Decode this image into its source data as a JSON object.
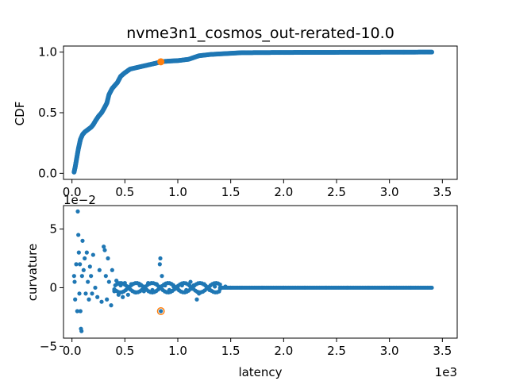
{
  "chart_data": [
    {
      "type": "scatter",
      "title": "nvme3n1_cosmos_out-rerated-10.0",
      "xlabel": "",
      "ylabel": "CDF",
      "xlim": [
        -80,
        3640
      ],
      "ylim": [
        -0.05,
        1.05
      ],
      "xticks": [
        0.0,
        0.5,
        1.0,
        1.5,
        2.0,
        2.5,
        3.0,
        3.5
      ],
      "xtick_labels": [
        "0.0",
        "0.5",
        "1.0",
        "1.5",
        "2.0",
        "2.5",
        "3.0",
        "3.5"
      ],
      "yticks": [
        0.0,
        0.5,
        1.0
      ],
      "ytick_labels": [
        "0.0",
        "0.5",
        "1.0"
      ],
      "x_scale_note": "",
      "series_color": "#1f77b4",
      "highlight_color": "#ff7f0e",
      "cdf_curve": [
        [
          20,
          0.01
        ],
        [
          30,
          0.05
        ],
        [
          40,
          0.1
        ],
        [
          50,
          0.15
        ],
        [
          60,
          0.2
        ],
        [
          70,
          0.24
        ],
        [
          80,
          0.28
        ],
        [
          100,
          0.32
        ],
        [
          120,
          0.34
        ],
        [
          150,
          0.36
        ],
        [
          180,
          0.38
        ],
        [
          200,
          0.4
        ],
        [
          220,
          0.43
        ],
        [
          250,
          0.47
        ],
        [
          280,
          0.5
        ],
        [
          300,
          0.53
        ],
        [
          330,
          0.58
        ],
        [
          350,
          0.65
        ],
        [
          380,
          0.7
        ],
        [
          400,
          0.72
        ],
        [
          430,
          0.75
        ],
        [
          460,
          0.8
        ],
        [
          500,
          0.83
        ],
        [
          550,
          0.86
        ],
        [
          600,
          0.87
        ],
        [
          700,
          0.89
        ],
        [
          800,
          0.91
        ],
        [
          840,
          0.92
        ],
        [
          900,
          0.925
        ],
        [
          1000,
          0.93
        ],
        [
          1100,
          0.94
        ],
        [
          1200,
          0.97
        ],
        [
          1300,
          0.98
        ],
        [
          1400,
          0.985
        ],
        [
          1500,
          0.99
        ],
        [
          1600,
          0.995
        ],
        [
          2000,
          0.997
        ],
        [
          2500,
          0.998
        ],
        [
          3000,
          0.999
        ],
        [
          3400,
          1.0
        ]
      ],
      "highlight_point": [
        840,
        0.92
      ]
    },
    {
      "type": "scatter",
      "title": "",
      "xlabel": "latency",
      "ylabel": "curvature",
      "xlim": [
        -80,
        3640
      ],
      "ylim": [
        -0.043,
        0.07
      ],
      "xticks": [
        0.0,
        0.5,
        1.0,
        1.5,
        2.0,
        2.5,
        3.0,
        3.5
      ],
      "xtick_labels": [
        "0.0",
        "0.5",
        "1.0",
        "1.5",
        "2.0",
        "2.5",
        "3.0",
        "3.5"
      ],
      "yticks": [
        -0.05,
        0,
        0.05
      ],
      "ytick_labels": [
        "−5",
        "0",
        "5"
      ],
      "y_offset_label": "1e−2",
      "x_offset_label": "1e3",
      "series_color": "#1f77b4",
      "highlight_color": "#ff7f0e",
      "points": [
        [
          20,
          0.01
        ],
        [
          25,
          0.005
        ],
        [
          30,
          -0.01
        ],
        [
          40,
          0.02
        ],
        [
          50,
          -0.02
        ],
        [
          55,
          0.065
        ],
        [
          60,
          0.045
        ],
        [
          65,
          0.03
        ],
        [
          70,
          -0.005
        ],
        [
          75,
          0.02
        ],
        [
          80,
          -0.02
        ],
        [
          85,
          -0.035
        ],
        [
          90,
          -0.037
        ],
        [
          95,
          0.01
        ],
        [
          100,
          0.04
        ],
        [
          110,
          0.015
        ],
        [
          120,
          0.025
        ],
        [
          130,
          -0.005
        ],
        [
          140,
          0.03
        ],
        [
          150,
          0.005
        ],
        [
          160,
          -0.01
        ],
        [
          170,
          0.018
        ],
        [
          180,
          0.01
        ],
        [
          190,
          -0.005
        ],
        [
          200,
          0.028
        ],
        [
          220,
          0.0
        ],
        [
          240,
          -0.008
        ],
        [
          260,
          0.015
        ],
        [
          280,
          -0.012
        ],
        [
          300,
          0.035
        ],
        [
          310,
          0.032
        ],
        [
          320,
          0.01
        ],
        [
          330,
          -0.01
        ],
        [
          340,
          0.025
        ],
        [
          350,
          0.005
        ],
        [
          370,
          -0.015
        ],
        [
          380,
          0.015
        ],
        [
          400,
          -0.003
        ],
        [
          420,
          0.006
        ],
        [
          440,
          -0.006
        ],
        [
          460,
          0.002
        ],
        [
          480,
          -0.008
        ],
        [
          500,
          0.004
        ],
        [
          530,
          -0.006
        ],
        [
          560,
          0.003
        ],
        [
          600,
          -0.004
        ],
        [
          640,
          0.002
        ],
        [
          680,
          -0.003
        ],
        [
          720,
          0.004
        ],
        [
          760,
          -0.002
        ],
        [
          800,
          0.003
        ],
        [
          830,
          0.02
        ],
        [
          835,
          0.025
        ],
        [
          840,
          -0.02
        ],
        [
          850,
          0.01
        ],
        [
          880,
          0.002
        ],
        [
          920,
          -0.002
        ],
        [
          960,
          0.001
        ],
        [
          1000,
          -0.001
        ],
        [
          1040,
          0.002
        ],
        [
          1080,
          -0.002
        ],
        [
          1120,
          0.005
        ],
        [
          1150,
          0.002
        ],
        [
          1180,
          -0.01
        ],
        [
          1200,
          -0.005
        ],
        [
          1250,
          0.003
        ],
        [
          1300,
          -0.002
        ],
        [
          1350,
          0.001
        ],
        [
          1400,
          -0.001
        ],
        [
          1450,
          0.001
        ],
        [
          1500,
          0.0
        ],
        [
          1600,
          0.0
        ],
        [
          1800,
          0.0
        ],
        [
          2000,
          0.0
        ],
        [
          2200,
          0.0
        ],
        [
          2400,
          0.0
        ],
        [
          2600,
          0.0
        ],
        [
          2800,
          0.0
        ],
        [
          3000,
          0.0
        ],
        [
          3200,
          0.0
        ],
        [
          3400,
          0.0
        ]
      ],
      "highlight_point": [
        840,
        -0.02
      ]
    }
  ]
}
